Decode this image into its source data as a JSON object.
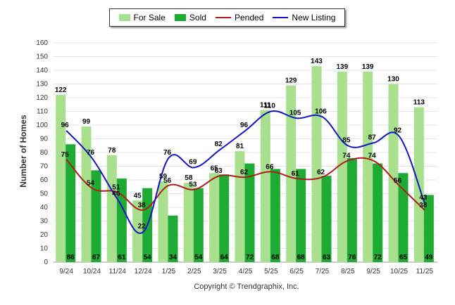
{
  "legend": {
    "for_sale": "For Sale",
    "sold": "Sold",
    "pended": "Pended",
    "new_listing": "New Listing"
  },
  "footer": "Copyright © Trendgraphix, Inc.",
  "colors": {
    "for_sale": "#a8e08e",
    "sold": "#1eab33",
    "pended": "#b01c1c",
    "new_listing": "#1414c8",
    "grid": "#e4e4e4",
    "axis_text": "#333333"
  },
  "chart_data": {
    "type": "bar",
    "title": "",
    "xlabel": "",
    "ylabel": "Number of Homes",
    "ylim": [
      0,
      160
    ],
    "ytick_step": 10,
    "grid": true,
    "legend_position": "top-center",
    "categories": [
      "9/24",
      "10/24",
      "11/24",
      "12/24",
      "1/25",
      "2/25",
      "3/25",
      "4/25",
      "5/25",
      "6/25",
      "7/25",
      "8/25",
      "9/25",
      "10/25",
      "11/25"
    ],
    "series": [
      {
        "name": "For Sale",
        "type": "bar",
        "values": [
          122,
          99,
          78,
          45,
          59,
          58,
          65,
          81,
          111,
          129,
          143,
          139,
          139,
          130,
          113
        ]
      },
      {
        "name": "Sold",
        "type": "bar",
        "values": [
          86,
          67,
          61,
          54,
          34,
          54,
          64,
          72,
          68,
          68,
          63,
          76,
          72,
          65,
          49
        ]
      },
      {
        "name": "Pended",
        "type": "line",
        "values": [
          75,
          54,
          51,
          38,
          56,
          53,
          63,
          62,
          66,
          61,
          62,
          74,
          74,
          56,
          38
        ]
      },
      {
        "name": "New Listing",
        "type": "line",
        "values": [
          96,
          76,
          46,
          22,
          76,
          69,
          82,
          96,
          110,
          105,
          106,
          85,
          87,
          92,
          43
        ]
      }
    ]
  }
}
